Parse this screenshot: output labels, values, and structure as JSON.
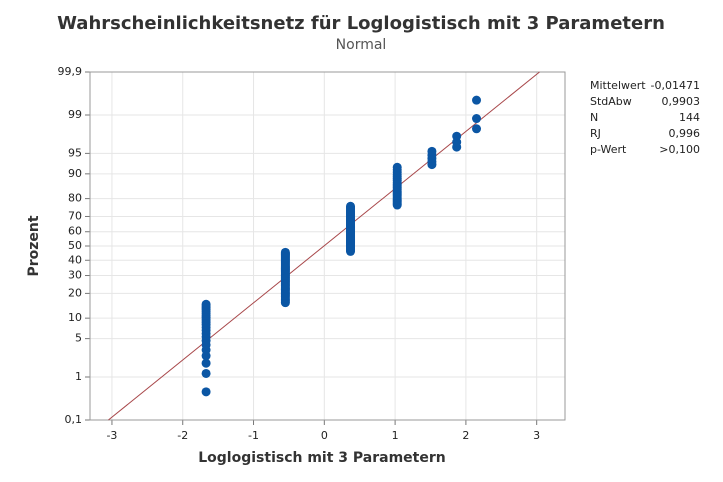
{
  "chart_data": {
    "type": "probability_plot",
    "title": "Wahrscheinlichkeitsnetz für Loglogistisch mit 3 Parametern",
    "subtitle": "Normal",
    "x_label": "Loglogistisch mit 3 Parametern",
    "y_label": "Prozent",
    "xlim": [
      -3.31,
      3.4
    ],
    "ylim": [
      0.1,
      99.9
    ],
    "xticks": [
      -3,
      -2,
      -1,
      0,
      1,
      2,
      3
    ],
    "yticks": [
      {
        "value": 0.1,
        "label": "0,1"
      },
      1,
      5,
      10,
      20,
      30,
      40,
      50,
      60,
      70,
      80,
      90,
      95,
      99,
      {
        "value": 99.9,
        "label": "99,9"
      }
    ],
    "y_scale": "normal_probability",
    "grid": true,
    "color": "#0b56a4",
    "fit_line": {
      "color": "#a8474a",
      "x": [
        -3.05,
        3.04
      ],
      "y": [
        0.1,
        99.9
      ]
    },
    "x": [
      -1.67,
      -1.67,
      -1.67,
      -1.67,
      -1.67,
      -1.67,
      -1.67,
      -1.67,
      -1.67,
      -1.67,
      -1.67,
      -1.67,
      -1.67,
      -1.67,
      -1.67,
      -1.67,
      -1.67,
      -1.67,
      -1.67,
      -1.67,
      -1.67,
      -1.67,
      -0.55,
      -0.55,
      -0.55,
      -0.55,
      -0.55,
      -0.55,
      -0.55,
      -0.55,
      -0.55,
      -0.55,
      -0.55,
      -0.55,
      -0.55,
      -0.55,
      -0.55,
      -0.55,
      -0.55,
      -0.55,
      -0.55,
      -0.55,
      -0.55,
      -0.55,
      -0.55,
      -0.55,
      -0.55,
      -0.55,
      -0.55,
      -0.55,
      -0.55,
      -0.55,
      -0.55,
      -0.55,
      -0.55,
      -0.55,
      -0.55,
      -0.55,
      -0.55,
      -0.55,
      -0.55,
      -0.55,
      -0.55,
      -0.55,
      -0.55,
      -0.55,
      0.37,
      0.37,
      0.37,
      0.37,
      0.37,
      0.37,
      0.37,
      0.37,
      0.37,
      0.37,
      0.37,
      0.37,
      0.37,
      0.37,
      0.37,
      0.37,
      0.37,
      0.37,
      0.37,
      0.37,
      0.37,
      0.37,
      0.37,
      0.37,
      0.37,
      0.37,
      0.37,
      0.37,
      0.37,
      0.37,
      0.37,
      0.37,
      0.37,
      0.37,
      0.37,
      0.37,
      0.37,
      0.37,
      0.37,
      0.37,
      0.37,
      0.37,
      0.37,
      0.37,
      1.03,
      1.03,
      1.03,
      1.03,
      1.03,
      1.03,
      1.03,
      1.03,
      1.03,
      1.03,
      1.03,
      1.03,
      1.03,
      1.03,
      1.03,
      1.03,
      1.03,
      1.03,
      1.03,
      1.03,
      1.03,
      1.03,
      1.03,
      1.52,
      1.52,
      1.52,
      1.52,
      1.52,
      1.87,
      1.87,
      1.87,
      2.15,
      2.15,
      2.15
    ],
    "y": [
      0.48,
      1.18,
      1.87,
      2.56,
      3.25,
      3.95,
      4.64,
      5.33,
      6.02,
      6.72,
      7.41,
      8.1,
      8.8,
      9.49,
      10.18,
      10.87,
      11.57,
      12.26,
      12.95,
      13.64,
      14.34,
      15.03,
      15.72,
      16.41,
      17.11,
      17.8,
      18.49,
      19.18,
      19.88,
      20.57,
      21.26,
      21.95,
      22.65,
      23.34,
      24.03,
      24.72,
      25.42,
      26.11,
      26.8,
      27.49,
      28.19,
      28.88,
      29.57,
      30.26,
      30.96,
      31.65,
      32.34,
      33.03,
      33.73,
      34.42,
      35.11,
      35.8,
      36.5,
      37.19,
      37.88,
      38.57,
      39.27,
      39.96,
      40.65,
      41.34,
      42.04,
      42.73,
      43.42,
      44.11,
      44.81,
      45.5,
      46.19,
      46.88,
      47.58,
      48.27,
      48.96,
      49.65,
      50.35,
      51.04,
      51.73,
      52.42,
      53.12,
      53.81,
      54.5,
      55.19,
      55.89,
      56.58,
      57.27,
      57.96,
      58.66,
      59.35,
      60.04,
      60.73,
      61.43,
      62.12,
      62.81,
      63.5,
      64.2,
      64.89,
      65.58,
      66.27,
      66.97,
      67.66,
      68.35,
      69.04,
      69.74,
      70.43,
      71.12,
      71.81,
      72.51,
      73.2,
      73.89,
      74.58,
      75.28,
      75.97,
      76.66,
      77.35,
      78.05,
      78.74,
      79.43,
      80.12,
      80.82,
      81.51,
      82.2,
      82.89,
      83.59,
      84.28,
      84.97,
      85.66,
      86.36,
      87.05,
      87.74,
      88.43,
      89.13,
      89.82,
      90.51,
      91.2,
      91.9,
      92.59,
      93.28,
      93.98,
      94.67,
      95.36,
      96.05,
      96.75,
      97.44,
      98.13,
      98.82,
      99.52
    ],
    "stats": [
      {
        "label": "Mittelwert",
        "value": "-0,01471"
      },
      {
        "label": "StdAbw",
        "value": "0,9903"
      },
      {
        "label": "N",
        "value": "144"
      },
      {
        "label": "RJ",
        "value": "0,996"
      },
      {
        "label": "p-Wert",
        "value": ">0,100"
      }
    ]
  }
}
